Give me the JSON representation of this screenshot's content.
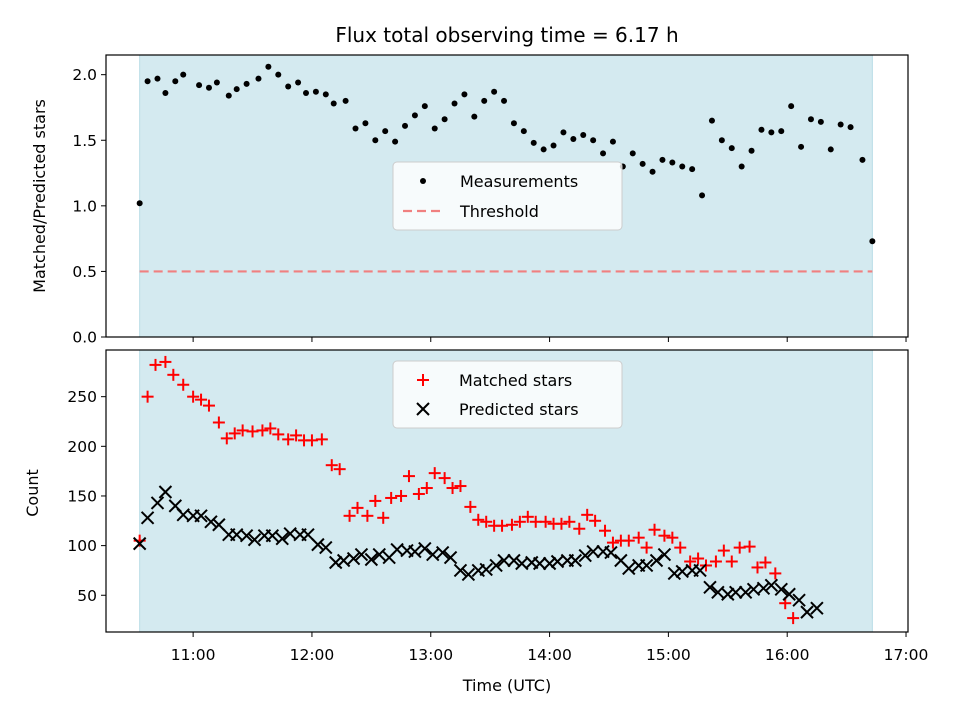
{
  "title": "Flux total observing time = 6.17 h",
  "colors": {
    "shade": "#d4eaf0",
    "measurement": "#000000",
    "threshold": "#f08080",
    "matched": "#ff0000",
    "predicted": "#000000"
  },
  "chart_data": [
    {
      "type": "scatter",
      "ylabel": "Matched/Predicted stars",
      "ylim": [
        0,
        2.15
      ],
      "yticks": [
        "0.0",
        "0.5",
        "1.0",
        "1.5",
        "2.0"
      ],
      "xlim": [
        "10:16",
        "17:01"
      ],
      "shaded_span": [
        "10:33",
        "16:43"
      ],
      "legend": {
        "placement": "center",
        "entries": [
          "Measurements",
          "Threshold"
        ]
      },
      "threshold": 0.5,
      "series": [
        {
          "name": "Measurements",
          "points": [
            [
              "10:33",
              1.02
            ],
            [
              "10:37",
              1.95
            ],
            [
              "10:42",
              1.97
            ],
            [
              "10:46",
              1.86
            ],
            [
              "10:51",
              1.95
            ],
            [
              "10:55",
              2.0
            ],
            [
              "11:03",
              1.92
            ],
            [
              "11:08",
              1.9
            ],
            [
              "11:12",
              1.94
            ],
            [
              "11:18",
              1.84
            ],
            [
              "11:22",
              1.89
            ],
            [
              "11:27",
              1.93
            ],
            [
              "11:33",
              1.97
            ],
            [
              "11:38",
              2.06
            ],
            [
              "11:43",
              2.0
            ],
            [
              "11:48",
              1.91
            ],
            [
              "11:53",
              1.94
            ],
            [
              "11:57",
              1.86
            ],
            [
              "12:02",
              1.87
            ],
            [
              "12:07",
              1.85
            ],
            [
              "12:11",
              1.78
            ],
            [
              "12:17",
              1.8
            ],
            [
              "12:22",
              1.59
            ],
            [
              "12:27",
              1.63
            ],
            [
              "12:32",
              1.5
            ],
            [
              "12:37",
              1.57
            ],
            [
              "12:42",
              1.49
            ],
            [
              "12:47",
              1.61
            ],
            [
              "12:52",
              1.69
            ],
            [
              "12:57",
              1.76
            ],
            [
              "13:02",
              1.59
            ],
            [
              "13:07",
              1.66
            ],
            [
              "13:12",
              1.78
            ],
            [
              "13:17",
              1.85
            ],
            [
              "13:22",
              1.68
            ],
            [
              "13:27",
              1.8
            ],
            [
              "13:32",
              1.87
            ],
            [
              "13:37",
              1.8
            ],
            [
              "13:42",
              1.63
            ],
            [
              "13:47",
              1.57
            ],
            [
              "13:52",
              1.48
            ],
            [
              "13:57",
              1.43
            ],
            [
              "14:02",
              1.46
            ],
            [
              "14:07",
              1.56
            ],
            [
              "14:12",
              1.51
            ],
            [
              "14:17",
              1.54
            ],
            [
              "14:22",
              1.5
            ],
            [
              "14:27",
              1.4
            ],
            [
              "14:32",
              1.49
            ],
            [
              "14:37",
              1.3
            ],
            [
              "14:42",
              1.4
            ],
            [
              "14:47",
              1.32
            ],
            [
              "14:52",
              1.26
            ],
            [
              "14:57",
              1.35
            ],
            [
              "15:02",
              1.33
            ],
            [
              "15:07",
              1.3
            ],
            [
              "15:12",
              1.28
            ],
            [
              "15:17",
              1.08
            ],
            [
              "15:22",
              1.65
            ],
            [
              "15:27",
              1.5
            ],
            [
              "15:32",
              1.44
            ],
            [
              "15:37",
              1.3
            ],
            [
              "15:42",
              1.42
            ],
            [
              "15:47",
              1.58
            ],
            [
              "15:52",
              1.56
            ],
            [
              "15:57",
              1.57
            ],
            [
              "16:02",
              1.76
            ],
            [
              "16:07",
              1.45
            ],
            [
              "16:12",
              1.66
            ],
            [
              "16:17",
              1.64
            ],
            [
              "16:22",
              1.43
            ],
            [
              "16:27",
              1.62
            ],
            [
              "16:32",
              1.6
            ],
            [
              "16:38",
              1.35
            ],
            [
              "16:43",
              0.73
            ]
          ]
        }
      ]
    },
    {
      "type": "scatter",
      "ylabel": "Count",
      "xlabel": "Time (UTC)",
      "ylim": [
        13,
        297
      ],
      "yticks": [
        "50",
        "100",
        "150",
        "200",
        "250"
      ],
      "xlim": [
        "10:16",
        "17:01"
      ],
      "xticks": [
        "11:00",
        "12:00",
        "13:00",
        "14:00",
        "15:00",
        "16:00",
        "17:00"
      ],
      "shaded_span": [
        "10:33",
        "16:43"
      ],
      "legend": {
        "placement": "upper center",
        "entries": [
          "Matched stars",
          "Predicted stars"
        ]
      },
      "series": [
        {
          "name": "Matched stars",
          "points": [
            [
              "10:33",
              105
            ],
            [
              "10:37",
              250
            ],
            [
              "10:41",
              282
            ],
            [
              "10:46",
              285
            ],
            [
              "10:50",
              272
            ],
            [
              "10:55",
              262
            ],
            [
              "11:00",
              250
            ],
            [
              "11:04",
              247
            ],
            [
              "11:08",
              241
            ],
            [
              "11:13",
              224
            ],
            [
              "11:17",
              208
            ],
            [
              "11:21",
              213
            ],
            [
              "11:25",
              216
            ],
            [
              "11:30",
              215
            ],
            [
              "11:35",
              216
            ],
            [
              "11:39",
              218
            ],
            [
              "11:43",
              212
            ],
            [
              "11:48",
              207
            ],
            [
              "11:52",
              211
            ],
            [
              "11:56",
              206
            ],
            [
              "12:00",
              206
            ],
            [
              "12:05",
              207
            ],
            [
              "12:10",
              181
            ],
            [
              "12:14",
              177
            ],
            [
              "12:19",
              130
            ],
            [
              "12:23",
              138
            ],
            [
              "12:28",
              130
            ],
            [
              "12:32",
              145
            ],
            [
              "12:36",
              128
            ],
            [
              "12:40",
              148
            ],
            [
              "12:45",
              150
            ],
            [
              "12:49",
              170
            ],
            [
              "12:54",
              152
            ],
            [
              "12:58",
              158
            ],
            [
              "13:02",
              173
            ],
            [
              "13:07",
              168
            ],
            [
              "13:11",
              158
            ],
            [
              "13:15",
              160
            ],
            [
              "13:20",
              139
            ],
            [
              "13:24",
              126
            ],
            [
              "13:28",
              124
            ],
            [
              "13:32",
              120
            ],
            [
              "13:36",
              120
            ],
            [
              "13:41",
              121
            ],
            [
              "13:45",
              124
            ],
            [
              "13:49",
              129
            ],
            [
              "13:53",
              124
            ],
            [
              "13:58",
              124
            ],
            [
              "14:02",
              122
            ],
            [
              "14:06",
              122
            ],
            [
              "14:10",
              124
            ],
            [
              "14:15",
              117
            ],
            [
              "14:19",
              131
            ],
            [
              "14:23",
              125
            ],
            [
              "14:28",
              115
            ],
            [
              "14:32",
              103
            ],
            [
              "14:36",
              105
            ],
            [
              "14:40",
              105
            ],
            [
              "14:45",
              108
            ],
            [
              "14:49",
              98
            ],
            [
              "14:53",
              116
            ],
            [
              "14:58",
              110
            ],
            [
              "15:02",
              108
            ],
            [
              "15:06",
              98
            ],
            [
              "15:11",
              84
            ],
            [
              "15:15",
              87
            ],
            [
              "15:19",
              80
            ],
            [
              "15:24",
              84
            ],
            [
              "15:28",
              95
            ],
            [
              "15:32",
              84
            ],
            [
              "15:36",
              98
            ],
            [
              "15:41",
              99
            ],
            [
              "15:45",
              78
            ],
            [
              "15:49",
              83
            ],
            [
              "15:54",
              72
            ],
            [
              "15:59",
              42
            ],
            [
              "16:03",
              27
            ]
          ]
        },
        {
          "name": "Predicted stars",
          "points": [
            [
              "10:33",
              102
            ],
            [
              "10:37",
              128
            ],
            [
              "10:42",
              143
            ],
            [
              "10:46",
              154
            ],
            [
              "10:51",
              140
            ],
            [
              "10:55",
              131
            ],
            [
              "11:00",
              130
            ],
            [
              "11:04",
              130
            ],
            [
              "11:09",
              124
            ],
            [
              "11:13",
              121
            ],
            [
              "11:18",
              111
            ],
            [
              "11:22",
              111
            ],
            [
              "11:27",
              110
            ],
            [
              "11:31",
              106
            ],
            [
              "11:36",
              110
            ],
            [
              "11:40",
              110
            ],
            [
              "11:45",
              107
            ],
            [
              "11:49",
              112
            ],
            [
              "11:54",
              111
            ],
            [
              "11:58",
              111
            ],
            [
              "12:03",
              101
            ],
            [
              "12:07",
              98
            ],
            [
              "12:12",
              83
            ],
            [
              "12:16",
              85
            ],
            [
              "12:21",
              87
            ],
            [
              "12:25",
              91
            ],
            [
              "12:30",
              86
            ],
            [
              "12:34",
              91
            ],
            [
              "12:39",
              88
            ],
            [
              "12:43",
              96
            ],
            [
              "12:48",
              95
            ],
            [
              "12:52",
              94
            ],
            [
              "12:57",
              97
            ],
            [
              "13:01",
              91
            ],
            [
              "13:06",
              93
            ],
            [
              "13:10",
              88
            ],
            [
              "13:15",
              75
            ],
            [
              "13:19",
              71
            ],
            [
              "13:24",
              75
            ],
            [
              "13:28",
              76
            ],
            [
              "13:33",
              80
            ],
            [
              "13:37",
              85
            ],
            [
              "13:42",
              85
            ],
            [
              "13:46",
              82
            ],
            [
              "13:51",
              83
            ],
            [
              "13:55",
              82
            ],
            [
              "14:00",
              82
            ],
            [
              "14:04",
              84
            ],
            [
              "14:09",
              85
            ],
            [
              "14:13",
              85
            ],
            [
              "14:18",
              90
            ],
            [
              "14:22",
              94
            ],
            [
              "14:27",
              94
            ],
            [
              "14:31",
              93
            ],
            [
              "14:36",
              85
            ],
            [
              "14:40",
              77
            ],
            [
              "14:45",
              80
            ],
            [
              "14:49",
              80
            ],
            [
              "14:54",
              85
            ],
            [
              "14:58",
              91
            ],
            [
              "15:03",
              72
            ],
            [
              "15:07",
              74
            ],
            [
              "15:12",
              75
            ],
            [
              "15:16",
              75
            ],
            [
              "15:21",
              58
            ],
            [
              "15:25",
              53
            ],
            [
              "15:30",
              51
            ],
            [
              "15:34",
              53
            ],
            [
              "15:39",
              53
            ],
            [
              "15:43",
              56
            ],
            [
              "15:48",
              57
            ],
            [
              "15:52",
              60
            ],
            [
              "15:57",
              56
            ],
            [
              "16:01",
              51
            ],
            [
              "16:06",
              45
            ],
            [
              "16:10",
              33
            ],
            [
              "16:15",
              37
            ]
          ]
        }
      ]
    }
  ]
}
